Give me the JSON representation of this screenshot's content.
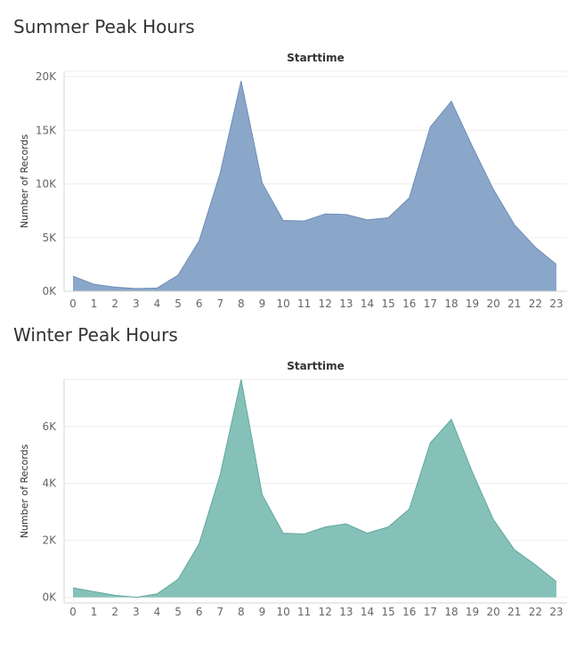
{
  "colors": {
    "summer_fill": "#8aa7c9",
    "summer_line": "#6e8db5",
    "winter_fill": "#86c1b9",
    "winter_line": "#5fa89e",
    "grid": "#eeeeee",
    "axis": "#d4d4d4"
  },
  "panels": [
    {
      "title": "Summer Peak Hours"
    },
    {
      "title": "Winter Peak Hours"
    }
  ],
  "chart_data": [
    {
      "type": "area",
      "title": "Summer Peak Hours",
      "column_header": "Starttime",
      "xlabel": "",
      "ylabel": "Number of Records",
      "x": [
        0,
        1,
        2,
        3,
        4,
        5,
        6,
        7,
        8,
        9,
        10,
        11,
        12,
        13,
        14,
        15,
        16,
        17,
        18,
        19,
        20,
        21,
        22,
        23
      ],
      "x_tick_labels": [
        "0",
        "1",
        "2",
        "3",
        "4",
        "5",
        "6",
        "7",
        "8",
        "9",
        "10",
        "11",
        "12",
        "13",
        "14",
        "15",
        "16",
        "17",
        "18",
        "19",
        "20",
        "21",
        "22",
        "23"
      ],
      "values": [
        1400,
        650,
        380,
        250,
        300,
        1500,
        4700,
        11000,
        19600,
        10100,
        6600,
        6550,
        7200,
        7150,
        6650,
        6850,
        8700,
        15300,
        17700,
        13500,
        9500,
        6200,
        4100,
        2500
      ],
      "y_ticks": [
        0,
        5000,
        10000,
        15000,
        20000
      ],
      "y_tick_labels": [
        "0K",
        "5K",
        "10K",
        "15K",
        "20K"
      ],
      "ylim": [
        0,
        20500
      ],
      "grid": true
    },
    {
      "type": "area",
      "title": "Winter Peak Hours",
      "column_header": "Starttime",
      "xlabel": "",
      "ylabel": "Number of Records",
      "x": [
        0,
        1,
        2,
        3,
        4,
        5,
        6,
        7,
        8,
        9,
        10,
        11,
        12,
        13,
        14,
        15,
        16,
        17,
        18,
        19,
        20,
        21,
        22,
        23
      ],
      "x_tick_labels": [
        "0",
        "1",
        "2",
        "3",
        "4",
        "5",
        "6",
        "7",
        "8",
        "9",
        "10",
        "11",
        "12",
        "13",
        "14",
        "15",
        "16",
        "17",
        "18",
        "19",
        "20",
        "21",
        "22",
        "23"
      ],
      "values": [
        330,
        200,
        70,
        0,
        120,
        630,
        1880,
        4300,
        7650,
        3600,
        2250,
        2220,
        2470,
        2580,
        2250,
        2470,
        3100,
        5420,
        6250,
        4400,
        2730,
        1670,
        1140,
        550
      ],
      "y_ticks": [
        0,
        2000,
        4000,
        6000
      ],
      "y_tick_labels": [
        "0K",
        "2K",
        "4K",
        "6K"
      ],
      "ylim": [
        -200,
        7650
      ],
      "grid": true
    }
  ]
}
